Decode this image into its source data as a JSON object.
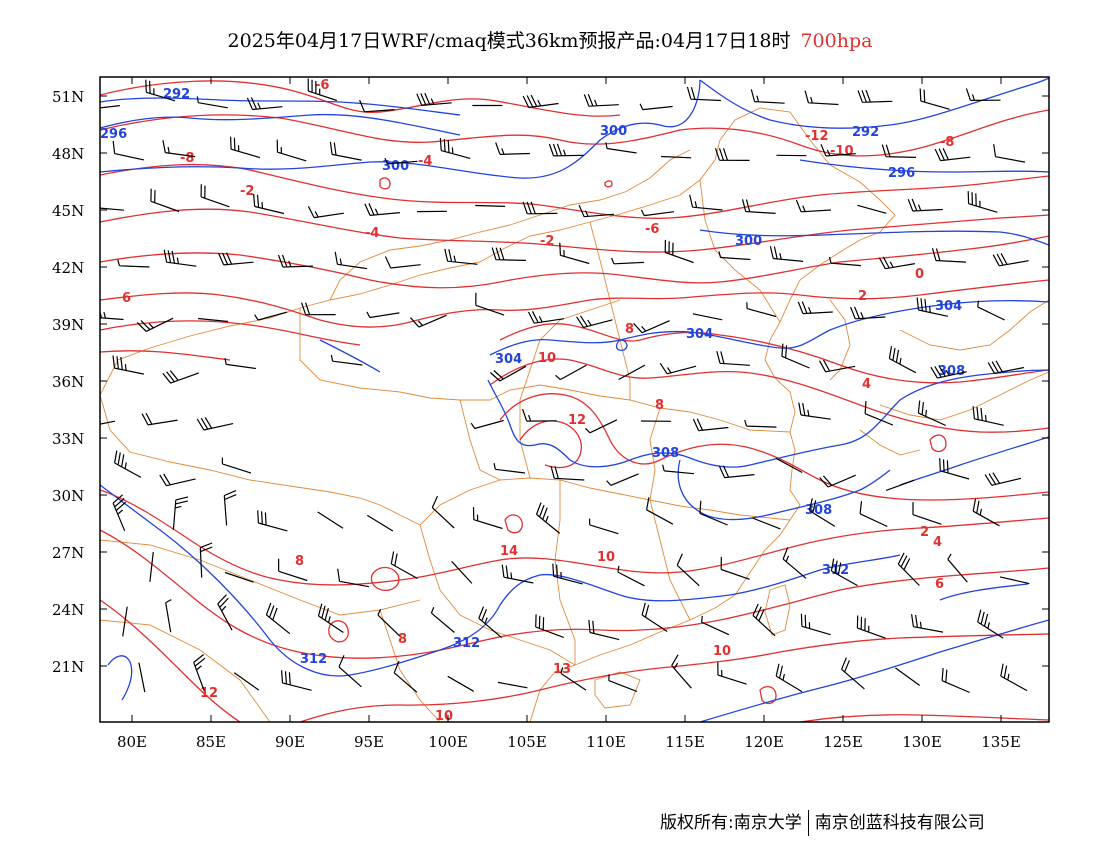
{
  "title": {
    "text": "2025年04月17日WRF/cmaq模式36km预报产品:04月17日18时",
    "level": "700hpa"
  },
  "axes": {
    "y_ticks": [
      "51N",
      "48N",
      "45N",
      "42N",
      "39N",
      "36N",
      "33N",
      "30N",
      "27N",
      "24N",
      "21N"
    ],
    "x_ticks": [
      "80E",
      "85E",
      "90E",
      "95E",
      "100E",
      "105E",
      "110E",
      "115E",
      "120E",
      "125E",
      "130E",
      "135E"
    ]
  },
  "colors": {
    "temperature": "#e03030",
    "height": "#2244dd",
    "border": "#e08a3a",
    "barb": "#000000"
  },
  "contour_labels": {
    "temperature": [
      "-6",
      "-4",
      "-2",
      "-8",
      "-12",
      "-10",
      "-8",
      "-6",
      "-4",
      "-2",
      "0",
      "2",
      "4",
      "6",
      "8",
      "10",
      "12",
      "14",
      "8",
      "10",
      "8",
      "2",
      "4",
      "6",
      "8",
      "10",
      "12",
      "13",
      "10"
    ],
    "height": [
      "292",
      "296",
      "300",
      "300",
      "292",
      "296",
      "300",
      "304",
      "308",
      "304",
      "308",
      "304",
      "308",
      "312",
      "312",
      "312"
    ]
  },
  "footer": {
    "left": "版权所有:南京大学",
    "right": "南京创蓝科技有限公司"
  }
}
